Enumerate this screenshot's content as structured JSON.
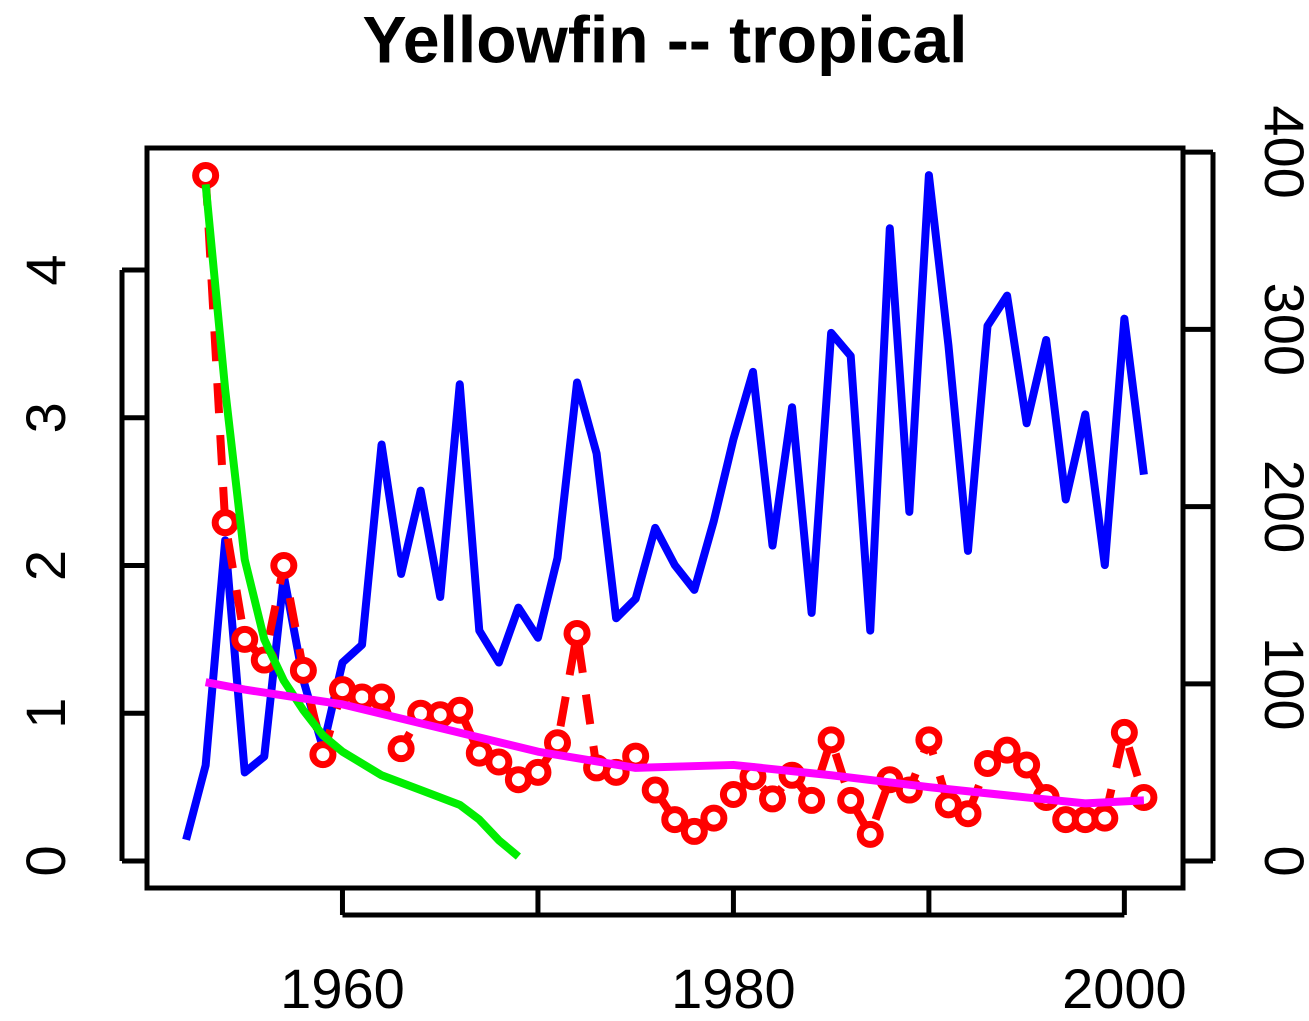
{
  "chart_data": {
    "type": "line",
    "title": "Yellowfin -- tropical",
    "xlim": [
      1950,
      2003
    ],
    "xticks": [
      1960,
      {
        "value": 1970,
        "label": null
      },
      1980,
      {
        "value": 1990,
        "label": null
      },
      2000
    ],
    "ylim": [
      -0.183,
      4.826
    ],
    "yticks": [
      0,
      1,
      2,
      3,
      4
    ],
    "y2lim": [
      -15.2,
      402.3
    ],
    "y2ticks": [
      0,
      100,
      200,
      300,
      400
    ],
    "series": [
      {
        "color": "#0000ff",
        "axis": "y2",
        "line_style": "solid",
        "x": [
          1952,
          1953,
          1954,
          1955,
          1956,
          1957,
          1958,
          1959,
          1960,
          1961,
          1962,
          1963,
          1964,
          1965,
          1966,
          1967,
          1968,
          1969,
          1970,
          1971,
          1972,
          1973,
          1974,
          1975,
          1976,
          1977,
          1978,
          1979,
          1980,
          1981,
          1982,
          1983,
          1984,
          1985,
          1986,
          1987,
          1988,
          1989,
          1990,
          1991,
          1992,
          1993,
          1994,
          1995,
          1996,
          1997,
          1998,
          1999,
          2000,
          2001
        ],
        "values": [
          12,
          54,
          181,
          50,
          59,
          161,
          102,
          64,
          112,
          122,
          235,
          162,
          209,
          149,
          269,
          130,
          112,
          143,
          126,
          171,
          270,
          230,
          137,
          148,
          188,
          167,
          153,
          192,
          238,
          276,
          178,
          256,
          140,
          298,
          285,
          130,
          357,
          197,
          387,
          291,
          175,
          302,
          319,
          247,
          294,
          204,
          252,
          167,
          306,
          218
        ]
      },
      {
        "color": "#ff0000",
        "axis": "y",
        "line_style": "dashed",
        "marker": "circle",
        "x": [
          1953,
          1954,
          1955,
          1956,
          1957,
          1958,
          1959,
          1960,
          1961,
          1962,
          1963,
          1964,
          1965,
          1966,
          1967,
          1968,
          1969,
          1970,
          1971,
          1972,
          1973,
          1974,
          1975,
          1976,
          1977,
          1978,
          1979,
          1980,
          1981,
          1982,
          1983,
          1984,
          1985,
          1986,
          1987,
          1988,
          1989,
          1990,
          1991,
          1992,
          1993,
          1994,
          1995,
          1996,
          1997,
          1998,
          1999,
          2000,
          2001
        ],
        "values": [
          4.64,
          2.29,
          1.5,
          1.36,
          2.0,
          1.29,
          0.72,
          1.16,
          1.11,
          1.11,
          0.76,
          1.0,
          0.99,
          1.02,
          0.73,
          0.67,
          0.55,
          0.6,
          0.8,
          1.54,
          0.63,
          0.6,
          0.71,
          0.48,
          0.28,
          0.2,
          0.29,
          0.45,
          0.57,
          0.42,
          0.58,
          0.41,
          0.82,
          0.41,
          0.18,
          0.55,
          0.48,
          0.82,
          0.38,
          0.32,
          0.66,
          0.75,
          0.65,
          0.43,
          0.28,
          0.28,
          0.29,
          0.87,
          0.43
        ]
      },
      {
        "color": "#00ee00",
        "axis": "y",
        "line_style": "solid",
        "x": [
          1953,
          1954,
          1955,
          1956,
          1957,
          1958,
          1959,
          1960,
          1962,
          1964,
          1966,
          1967,
          1968,
          1969
        ],
        "values": [
          4.58,
          3.19,
          2.04,
          1.5,
          1.22,
          1.02,
          0.85,
          0.74,
          0.58,
          0.48,
          0.38,
          0.28,
          0.14,
          0.03
        ]
      },
      {
        "color": "#ff00ff",
        "axis": "y",
        "line_style": "solid",
        "x": [
          1953,
          1955,
          1960,
          1965,
          1970,
          1975,
          1980,
          1985,
          1990,
          1995,
          1998,
          2001
        ],
        "values": [
          1.21,
          1.16,
          1.06,
          0.9,
          0.74,
          0.63,
          0.65,
          0.58,
          0.5,
          0.43,
          0.39,
          0.41
        ]
      }
    ]
  }
}
